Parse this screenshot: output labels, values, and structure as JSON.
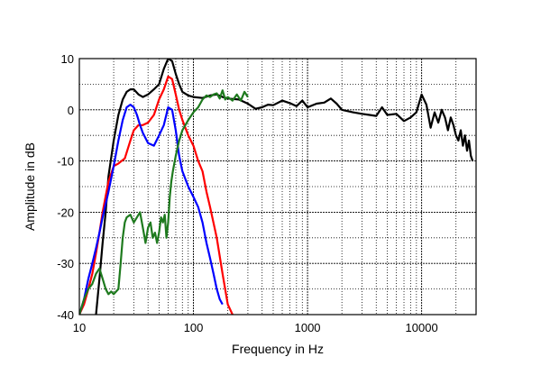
{
  "chart_data": {
    "type": "line",
    "title": "",
    "xlabel": "Frequency  in Hz",
    "ylabel": "Amplitude  in  dB",
    "x_scale": "log",
    "xlim": [
      10,
      30000
    ],
    "ylim": [
      -40,
      10
    ],
    "x_ticks": [
      10,
      100,
      1000,
      10000
    ],
    "x_tick_labels": [
      "10",
      "100",
      "1000",
      "10000"
    ],
    "y_ticks": [
      10,
      0,
      -10,
      -20,
      -30,
      -40
    ],
    "y_tick_labels": [
      "10",
      "0",
      "-10",
      "-20",
      "-30",
      "-40"
    ],
    "grid": true,
    "series": [
      {
        "color": "#000000",
        "x": [
          14,
          15,
          16,
          17,
          18,
          20,
          22,
          24,
          26,
          28,
          30,
          33,
          36,
          40,
          45,
          50,
          55,
          60,
          65,
          70,
          75,
          80,
          90,
          100,
          120,
          140,
          160,
          180,
          200,
          250,
          300,
          350,
          400,
          450,
          500,
          600,
          700,
          800,
          900,
          1000,
          1200,
          1400,
          1600,
          1800,
          2000,
          2500,
          3000,
          3500,
          4000,
          4500,
          5000,
          6000,
          7000,
          8000,
          9000,
          10000,
          11000,
          12000,
          13000,
          14000,
          15000,
          16000,
          17000,
          18000,
          19000,
          20000,
          21000,
          22000,
          23000,
          24000,
          25000,
          26000,
          27000,
          28000
        ],
        "y": [
          -40,
          -33,
          -26,
          -20,
          -13,
          -6,
          -1,
          2,
          3.5,
          4,
          4,
          3,
          2.5,
          3,
          4,
          5,
          8,
          10,
          9.5,
          7,
          5,
          3.5,
          2.8,
          2.5,
          2.3,
          2.8,
          3,
          2.5,
          2.2,
          2,
          1.2,
          0.2,
          0.5,
          1,
          0.9,
          1.8,
          1.3,
          0.7,
          1.8,
          0.5,
          1.2,
          1.4,
          2.2,
          1.2,
          0,
          -0.5,
          -0.8,
          -1,
          -1.2,
          0.5,
          -1,
          -0.8,
          -2.2,
          -1.5,
          -0.5,
          3,
          1,
          -3.5,
          -0.5,
          -2.5,
          0,
          -1.5,
          -4,
          -1.5,
          -3,
          -5,
          -6,
          -4,
          -7,
          -5,
          -8,
          -6,
          -9,
          -10
        ]
      },
      {
        "color": "#ff0000",
        "x": [
          10,
          11,
          12,
          13,
          14,
          15,
          16,
          18,
          20,
          22,
          25,
          28,
          30,
          33,
          36,
          40,
          45,
          50,
          55,
          60,
          65,
          70,
          75,
          80,
          90,
          100,
          110,
          120,
          130,
          140,
          160,
          180,
          200,
          220
        ],
        "y": [
          -40,
          -38,
          -35,
          -32,
          -28,
          -24,
          -20,
          -14,
          -11,
          -10.5,
          -9.5,
          -6,
          -4,
          -3,
          -3,
          -2.5,
          -1,
          2,
          4,
          6.5,
          6,
          3,
          0,
          -2,
          -5,
          -7,
          -10,
          -12,
          -16,
          -19,
          -25,
          -32,
          -38,
          -40
        ]
      },
      {
        "color": "#0000ff",
        "x": [
          10,
          11,
          12,
          13,
          14,
          15,
          16,
          18,
          20,
          22,
          24,
          26,
          28,
          30,
          32,
          34,
          36,
          40,
          45,
          50,
          55,
          60,
          65,
          70,
          75,
          80,
          90,
          100,
          110,
          120,
          130,
          140,
          150,
          160,
          170,
          180
        ],
        "y": [
          -40,
          -37,
          -33,
          -30,
          -27,
          -24,
          -21,
          -16,
          -11,
          -6,
          -2,
          0.5,
          1,
          0.5,
          -1,
          -3,
          -4.5,
          -6.5,
          -7,
          -5,
          -3,
          0.5,
          0,
          -4,
          -9,
          -12,
          -15,
          -17,
          -19,
          -22,
          -26,
          -29,
          -32,
          -35,
          -37,
          -38
        ]
      },
      {
        "color": "#1e7a1e",
        "x": [
          10,
          11,
          12,
          13,
          14,
          15,
          16,
          17,
          18,
          19,
          20,
          21,
          22,
          23,
          24,
          25,
          26,
          28,
          30,
          32,
          34,
          36,
          38,
          40,
          42,
          44,
          46,
          48,
          50,
          52,
          54,
          56,
          58,
          60,
          62,
          64,
          66,
          68,
          70,
          75,
          80,
          90,
          100,
          110,
          120,
          130,
          140,
          150,
          160,
          170,
          180,
          190,
          200,
          220,
          240,
          260,
          280,
          300
        ],
        "y": [
          -40,
          -37,
          -35,
          -34,
          -32,
          -31,
          -33,
          -35,
          -36,
          -35.5,
          -36,
          -35.5,
          -35,
          -30,
          -25,
          -22,
          -21,
          -20.5,
          -22,
          -21,
          -20,
          -23,
          -26,
          -23,
          -22,
          -25,
          -24,
          -26,
          -24,
          -21,
          -22,
          -20.5,
          -25,
          -22,
          -17,
          -14,
          -12,
          -10.5,
          -9,
          -6,
          -4,
          -2,
          -0.5,
          0.5,
          2,
          2.8,
          2.5,
          3,
          3.2,
          2.2,
          3.8,
          2,
          2.5,
          1.8,
          3,
          1.8,
          3.5,
          2.5
        ]
      }
    ]
  }
}
